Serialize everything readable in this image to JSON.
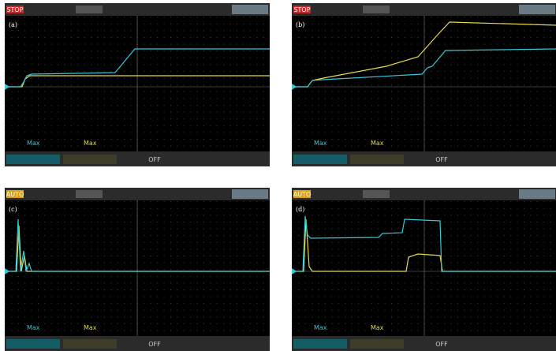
{
  "panels": [
    {
      "label": "(a)",
      "status": "STOP",
      "status_color": "#c0282a",
      "ch1_measure": "Max",
      "ch2_measure": "Max",
      "trigger": "OFF"
    },
    {
      "label": "(b)",
      "status": "STOP",
      "status_color": "#c0282a",
      "ch1_measure": "Max",
      "ch2_measure": "Max",
      "trigger": "OFF"
    },
    {
      "label": "(c)",
      "status": "AUTO",
      "status_color": "#d8a21a",
      "ch1_measure": "Max",
      "ch2_measure": "Max",
      "trigger": "OFF"
    },
    {
      "label": "(d)",
      "status": "AUTO",
      "status_color": "#d8a21a",
      "ch1_measure": "Max",
      "ch2_measure": "Max",
      "trigger": "OFF"
    }
  ]
}
